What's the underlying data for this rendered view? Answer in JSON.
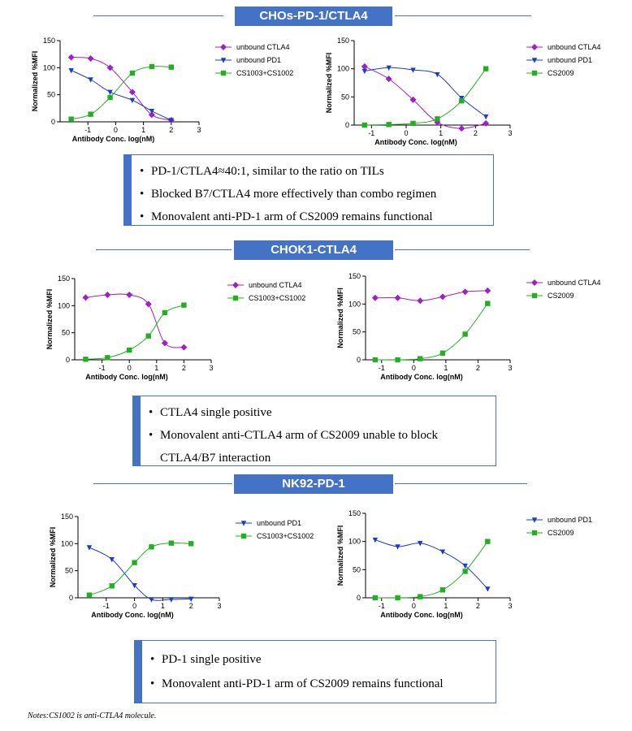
{
  "sections": [
    {
      "title": "CHOs-PD-1/CTLA4",
      "notes": [
        "PD-1/CTLA4≈40:1, similar to the ratio on TILs",
        "Blocked B7/CTLA4 more effectively than combo regimen",
        "Monovalent anti-PD-1 arm of CS2009 remains functional"
      ]
    },
    {
      "title": "CHOK1-CTLA4",
      "notes": [
        "CTLA4 single positive",
        "Monovalent anti-CTLA4 arm of CS2009 unable to block",
        "CTLA4/B7 interaction"
      ]
    },
    {
      "title": "NK92-PD-1",
      "notes": [
        "PD-1 single positive",
        "Monovalent anti-PD-1 arm of CS2009 remains functional"
      ]
    }
  ],
  "footnote": "Notes:CS1002 is anti-CTLA4 molecule.",
  "colors": {
    "ctla4": "#a020c8",
    "pd1": "#1a3cc8",
    "combo": "#22b022",
    "accent": "#4472c4"
  },
  "chart_data": [
    {
      "type": "scatter",
      "xlabel": "Antibody Conc. log(nM)",
      "ylabel": "Normalized %MFI",
      "xlim": [
        -2,
        3
      ],
      "ylim": [
        0,
        150
      ],
      "xticks": [
        -1,
        0,
        1,
        2,
        3
      ],
      "yticks": [
        0,
        50,
        100,
        150
      ],
      "series": [
        {
          "name": "unbound CTLA4",
          "color": "#a020c8",
          "marker": "diamond",
          "x": [
            -1.6,
            -0.9,
            -0.2,
            0.6,
            1.3,
            2.0
          ],
          "y": [
            119,
            117,
            100,
            55,
            13,
            3
          ]
        },
        {
          "name": "unbound PD1",
          "color": "#1a3cc8",
          "marker": "triangle-down",
          "x": [
            -1.6,
            -0.9,
            -0.2,
            0.6,
            1.3,
            2.0
          ],
          "y": [
            95,
            78,
            55,
            40,
            20,
            3
          ]
        },
        {
          "name": "CS1003+CS1002",
          "color": "#22b022",
          "marker": "square",
          "x": [
            -1.6,
            -0.9,
            -0.2,
            0.6,
            1.3,
            2.0
          ],
          "y": [
            5,
            14,
            45,
            90,
            102,
            101
          ]
        }
      ]
    },
    {
      "type": "scatter",
      "xlabel": "Antibody Conc. log(nM)",
      "ylabel": "Normalized %MFI",
      "xlim": [
        -1.5,
        3
      ],
      "ylim": [
        0,
        150
      ],
      "xticks": [
        -1,
        0,
        1,
        2,
        3
      ],
      "yticks": [
        0,
        50,
        100,
        150
      ],
      "series": [
        {
          "name": "unbound CTLA4",
          "color": "#a020c8",
          "marker": "diamond",
          "x": [
            -1.2,
            -0.5,
            0.2,
            0.9,
            1.6,
            2.3
          ],
          "y": [
            104,
            82,
            45,
            5,
            -6,
            3
          ]
        },
        {
          "name": "unbound PD1",
          "color": "#1a3cc8",
          "marker": "triangle-down",
          "x": [
            -1.2,
            -0.5,
            0.2,
            0.9,
            1.6,
            2.3
          ],
          "y": [
            96,
            102,
            98,
            90,
            48,
            15
          ]
        },
        {
          "name": "CS2009",
          "color": "#22b022",
          "marker": "square",
          "x": [
            -1.2,
            -0.5,
            0.2,
            0.9,
            1.6,
            2.3
          ],
          "y": [
            0,
            1,
            3,
            11,
            43,
            100
          ]
        }
      ]
    },
    {
      "type": "scatter",
      "xlabel": "Antibody Conc. log(nM)",
      "ylabel": "Normalized %MFI",
      "xlim": [
        -2,
        3
      ],
      "ylim": [
        0,
        150
      ],
      "xticks": [
        -1,
        0,
        1,
        2,
        3
      ],
      "yticks": [
        0,
        50,
        100,
        150
      ],
      "series": [
        {
          "name": "unbound CTLA4",
          "color": "#a020c8",
          "marker": "diamond",
          "x": [
            -1.6,
            -0.8,
            0.0,
            0.7,
            1.3,
            2.0
          ],
          "y": [
            115,
            120,
            120,
            103,
            31,
            23
          ]
        },
        {
          "name": "CS1003+CS1002",
          "color": "#22b022",
          "marker": "square",
          "x": [
            -1.6,
            -0.8,
            0.0,
            0.7,
            1.3,
            2.0
          ],
          "y": [
            1,
            4,
            18,
            44,
            87,
            101
          ]
        }
      ]
    },
    {
      "type": "scatter",
      "xlabel": "Antibody Conc. log(nM)",
      "ylabel": "Normalized %MFI",
      "xlim": [
        -1.5,
        3
      ],
      "ylim": [
        0,
        150
      ],
      "xticks": [
        -1,
        0,
        1,
        2,
        3
      ],
      "yticks": [
        0,
        50,
        100,
        150
      ],
      "series": [
        {
          "name": "unbound CTLA4",
          "color": "#a020c8",
          "marker": "diamond",
          "x": [
            -1.2,
            -0.5,
            0.2,
            0.9,
            1.6,
            2.3
          ],
          "y": [
            111,
            111,
            106,
            113,
            122,
            124
          ]
        },
        {
          "name": "CS2009",
          "color": "#22b022",
          "marker": "square",
          "x": [
            -1.2,
            -0.5,
            0.2,
            0.9,
            1.6,
            2.3
          ],
          "y": [
            0,
            0,
            2,
            12,
            46,
            101
          ]
        }
      ]
    },
    {
      "type": "scatter",
      "xlabel": "Antibody Conc. log(nM)",
      "ylabel": "Normalized %MFI",
      "xlim": [
        -2,
        3
      ],
      "ylim": [
        0,
        150
      ],
      "xticks": [
        -1,
        0,
        1,
        2,
        3
      ],
      "yticks": [
        0,
        50,
        100,
        150
      ],
      "series": [
        {
          "name": "unbound PD1",
          "color": "#1a3cc8",
          "marker": "triangle-down",
          "x": [
            -1.6,
            -0.8,
            0.0,
            0.6,
            1.3,
            2.0
          ],
          "y": [
            93,
            71,
            23,
            -3,
            -3,
            -2
          ]
        },
        {
          "name": "CS1003+CS1002",
          "color": "#22b022",
          "marker": "square",
          "x": [
            -1.6,
            -0.8,
            0.0,
            0.6,
            1.3,
            2.0
          ],
          "y": [
            5,
            22,
            65,
            94,
            101,
            100
          ]
        }
      ]
    },
    {
      "type": "scatter",
      "xlabel": "Antibody Conc. log(nM)",
      "ylabel": "Normalized %MFI",
      "xlim": [
        -1.5,
        3
      ],
      "ylim": [
        0,
        150
      ],
      "xticks": [
        -1,
        0,
        1,
        2,
        3
      ],
      "yticks": [
        0,
        50,
        100,
        150
      ],
      "series": [
        {
          "name": "unbound PD1",
          "color": "#1a3cc8",
          "marker": "triangle-down",
          "x": [
            -1.2,
            -0.5,
            0.2,
            0.9,
            1.6,
            2.3
          ],
          "y": [
            103,
            91,
            97,
            82,
            57,
            16
          ]
        },
        {
          "name": "CS2009",
          "color": "#22b022",
          "marker": "square",
          "x": [
            -1.2,
            -0.5,
            0.2,
            0.9,
            1.6,
            2.3
          ],
          "y": [
            0,
            0,
            2,
            14,
            47,
            100
          ]
        }
      ]
    }
  ]
}
